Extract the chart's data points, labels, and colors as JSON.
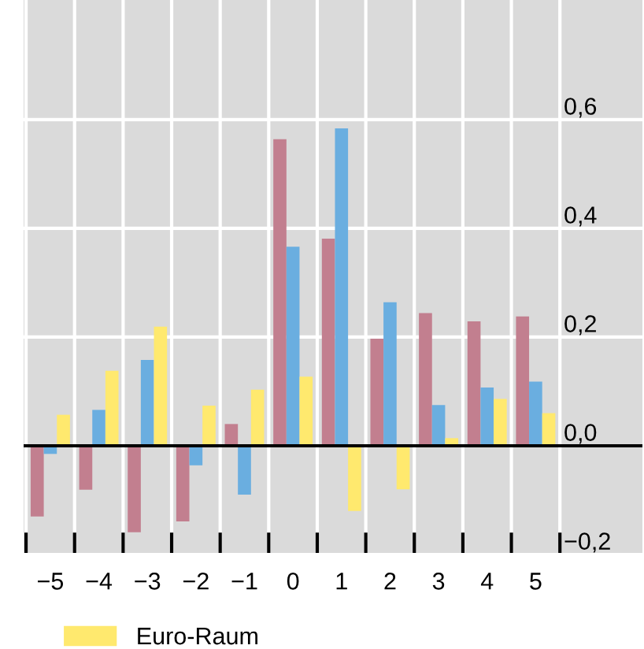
{
  "chart_data": {
    "type": "bar",
    "categories": [
      "−5",
      "−4",
      "−3",
      "−2",
      "−1",
      "0",
      "1",
      "2",
      "3",
      "4",
      "5"
    ],
    "series": [
      {
        "color": "#c27f8f",
        "values": [
          -0.13,
          -0.081,
          -0.159,
          -0.139,
          0.04,
          0.564,
          0.381,
          0.197,
          0.244,
          0.229,
          0.238
        ]
      },
      {
        "color": "#6aaee0",
        "values": [
          -0.015,
          0.066,
          0.158,
          -0.036,
          -0.09,
          0.366,
          0.584,
          0.264,
          0.075,
          0.107,
          0.118
        ]
      },
      {
        "name": "Euro-Raum",
        "color": "#ffe96e",
        "values": [
          0.057,
          0.138,
          0.219,
          0.074,
          0.103,
          0.127,
          -0.12,
          -0.08,
          0.014,
          0.086,
          0.06
        ]
      }
    ],
    "ylim": [
      -0.2,
      0.82
    ],
    "yticks": [
      {
        "value": -0.2,
        "label": "−0,2"
      },
      {
        "value": 0,
        "label": "0,0"
      },
      {
        "value": 0.2,
        "label": "0,2"
      },
      {
        "value": 0.4,
        "label": "0,4"
      },
      {
        "value": 0.6,
        "label": "0,6"
      }
    ],
    "ref_lines": [
      {
        "axis": "y",
        "value": 0,
        "color": "#000000"
      }
    ],
    "grid": true,
    "legend": "bottom left"
  }
}
